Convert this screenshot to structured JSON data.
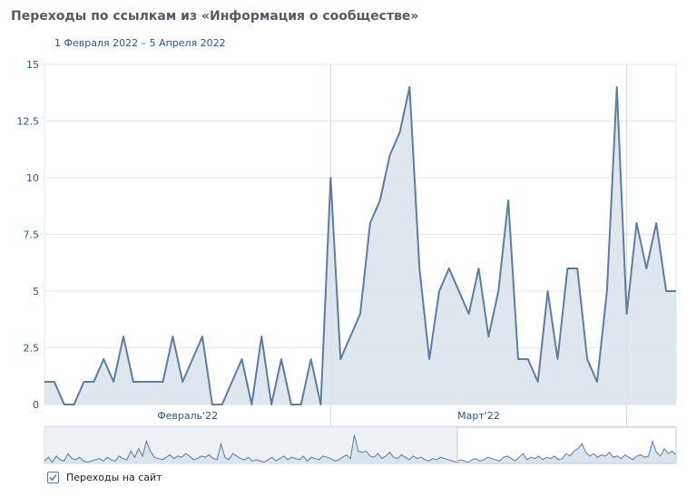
{
  "header": {
    "title": "Переходы по ссылкам из «Информация о сообществе»",
    "date_range": "1 Февраля 2022 – 5 Апреля 2022"
  },
  "legend": {
    "checkbox_checked": true,
    "label": "Переходы на сайт"
  },
  "colors": {
    "line": "#5f7d9d",
    "fill": "#dbe3ec",
    "grid": "#e3e7ec",
    "axis_text": "#2a5885"
  },
  "chart_data": {
    "type": "area",
    "title": "Переходы по ссылкам из «Информация о сообществе»",
    "xlabel": "",
    "ylabel": "",
    "ylim": [
      0,
      15
    ],
    "yticks": [
      "0",
      "2.5",
      "5",
      "7.5",
      "10",
      "12.5",
      "15"
    ],
    "month_labels": [
      "Февраль'22",
      "Март'22"
    ],
    "grid": true,
    "series": [
      {
        "name": "Переходы на сайт",
        "values": [
          1,
          1,
          0,
          0,
          1,
          1,
          2,
          1,
          3,
          1,
          1,
          1,
          1,
          3,
          1,
          2,
          3,
          0,
          0,
          1,
          2,
          0,
          3,
          0,
          2,
          0,
          0,
          2,
          0,
          10,
          2,
          3,
          4,
          8,
          9,
          11,
          12,
          14,
          6,
          2,
          5,
          6,
          5,
          4,
          6,
          3,
          5,
          9,
          2,
          2,
          1,
          5,
          2,
          6,
          6,
          2,
          1,
          5,
          14,
          4,
          8,
          6,
          8,
          5,
          5
        ]
      }
    ],
    "navigator_values": [
      0.2,
      0.5,
      0.1,
      0.6,
      0.3,
      0.2,
      0.8,
      0.4,
      0.3,
      0.5,
      0.2,
      0.1,
      0.2,
      0.3,
      0.4,
      0.2,
      0.5,
      0.3,
      0.2,
      0.6,
      0.4,
      0.3,
      1.0,
      0.5,
      1.2,
      0.6,
      1.8,
      1.0,
      0.5,
      0.4,
      0.3,
      0.5,
      0.7,
      0.4,
      0.6,
      0.5,
      0.8,
      0.6,
      0.3,
      0.4,
      0.6,
      0.5,
      0.7,
      0.4,
      0.3,
      1.6,
      0.5,
      0.3,
      0.8,
      0.6,
      0.4,
      0.3,
      0.5,
      0.2,
      0.3,
      0.2,
      0.1,
      0.3,
      0.5,
      0.2,
      0.4,
      0.6,
      0.3,
      0.5,
      0.4,
      0.3,
      0.6,
      0.2,
      0.5,
      0.4,
      0.3,
      0.6,
      0.5,
      0.4,
      0.2,
      0.3,
      0.5,
      0.7,
      0.4,
      2.3,
      1.0,
      0.9,
      1.0,
      0.6,
      0.5,
      0.8,
      0.4,
      0.6,
      0.9,
      0.5,
      0.4,
      0.7,
      0.5,
      0.3,
      0.6,
      0.4,
      0.5,
      0.3,
      0.2,
      0.4,
      0.3,
      0.5,
      0.4,
      0.3,
      0.2,
      0.1,
      0.3,
      0.2,
      0.1,
      0.3,
      0.4,
      0.2,
      0.3,
      0.5,
      0.4,
      0.3,
      0.2,
      0.5,
      0.6,
      0.4,
      0.2,
      0.5,
      0.8,
      0.3,
      0.5,
      0.4,
      0.6,
      0.3,
      0.5,
      0.4,
      0.6,
      0.3,
      0.4,
      0.8,
      0.6,
      1.0,
      1.2,
      1.6,
      0.9,
      0.6,
      0.8,
      0.5,
      0.7,
      0.6,
      0.9,
      0.5,
      0.6,
      0.4,
      0.7,
      0.5,
      0.3,
      0.6,
      0.7,
      0.5,
      0.6,
      1.8,
      0.9,
      0.6,
      1.2,
      0.8,
      1.0,
      0.7
    ]
  }
}
